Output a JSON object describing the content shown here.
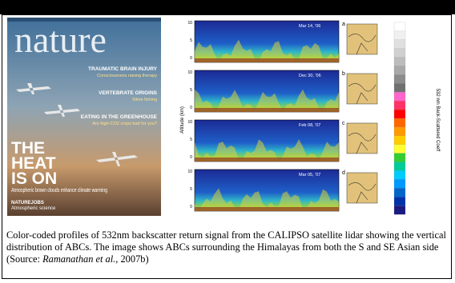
{
  "cover": {
    "masthead": "nature",
    "stories": [
      {
        "title": "TRAUMATIC BRAIN INJURY",
        "sub": "Consciousness raising therapy"
      },
      {
        "title": "VERTEBRATE ORIGINS",
        "sub": "Slime fishing"
      },
      {
        "title": "EATING IN THE GREENHOUSE",
        "sub": "Are high-CO2 crops bad for you?"
      }
    ],
    "headline": [
      "THE",
      "HEAT",
      "IS ON"
    ],
    "subhead": "Atmospheric brown clouds enhance climate warming",
    "footer": [
      "NATUREJOBS",
      "Atmospheric science"
    ]
  },
  "panels": [
    {
      "label": "a",
      "date": "Mar 14, '06"
    },
    {
      "label": "b",
      "date": "Dec 30, '06"
    },
    {
      "label": "c",
      "date": "Feb 08, '07"
    },
    {
      "label": "d",
      "date": "Mar 05, '07"
    }
  ],
  "y_axis": {
    "label": "Altitude (km)",
    "ticks": [
      "10",
      "5",
      "0"
    ]
  },
  "colorbar": {
    "label": "532 nm Back-Scattered Coeff"
  },
  "caption": {
    "text": "Color-coded profiles of 532nm backscatter return signal from the CALIPSO satellite lidar showing the vertical distribution of ABCs. The image shows ABCs surrounding the Himalayas from both the S and SE Asian side (Source: ",
    "author": "Ramanathan et al.",
    "suffix": ", 2007b)"
  }
}
